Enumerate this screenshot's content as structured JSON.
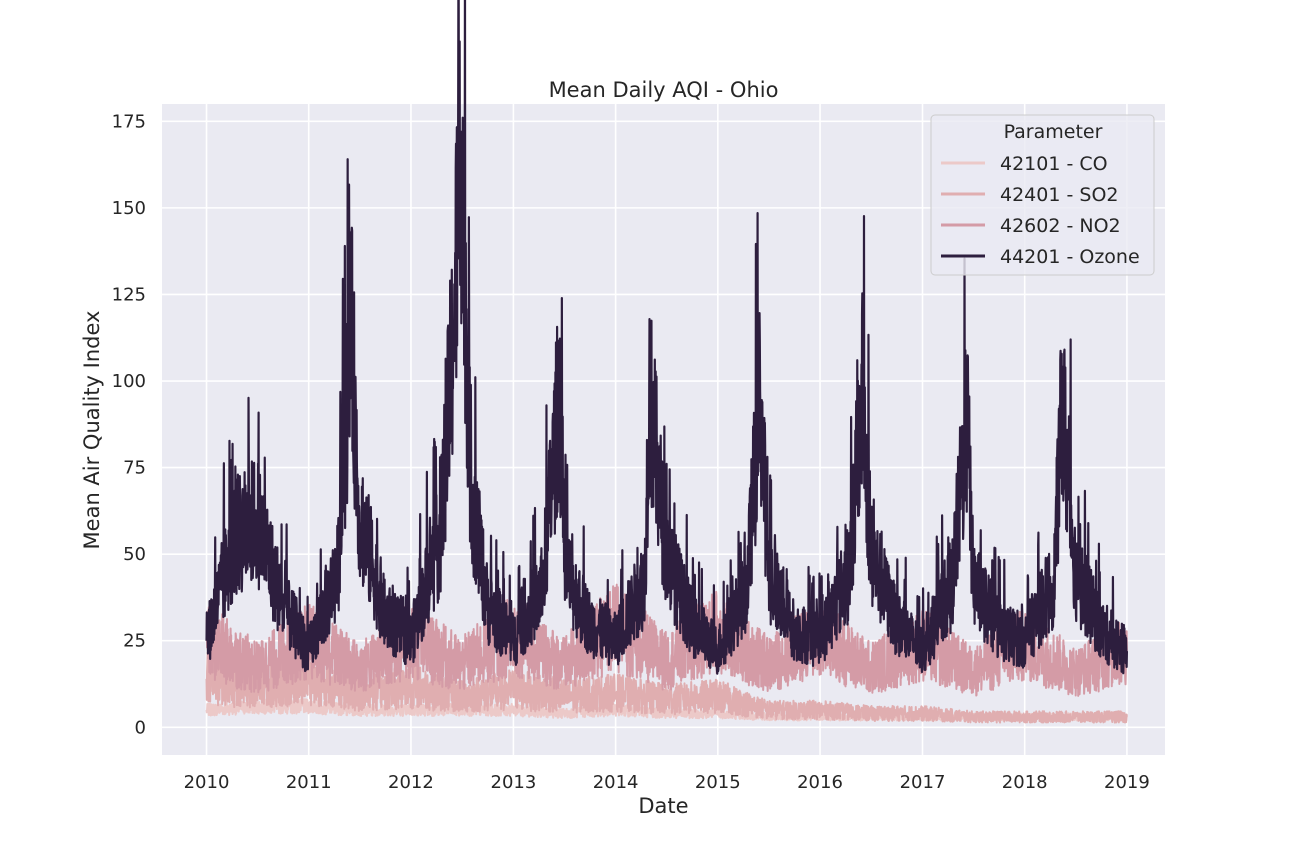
{
  "chart_data": {
    "type": "line",
    "title": "Mean Daily AQI - Ohio",
    "xlabel": "Date",
    "ylabel": "Mean Air Quality Index",
    "xlim": [
      "2009-07-26",
      "2019-05-17"
    ],
    "ylim": [
      -8,
      180
    ],
    "x_ticks": [
      "2010",
      "2011",
      "2012",
      "2013",
      "2014",
      "2015",
      "2016",
      "2017",
      "2018",
      "2019"
    ],
    "y_ticks": [
      0,
      25,
      50,
      75,
      100,
      125,
      150,
      175
    ],
    "grid": true,
    "legend": {
      "title": "Parameter",
      "position": "top-right"
    },
    "series": [
      {
        "name": "42101 - CO",
        "color": "#ecc9c8",
        "points": [
          [
            "2010-01-01",
            5
          ],
          [
            "2010-07-01",
            6
          ],
          [
            "2011-01-01",
            6
          ],
          [
            "2011-07-01",
            5
          ],
          [
            "2012-01-01",
            5
          ],
          [
            "2012-07-01",
            5
          ],
          [
            "2013-01-01",
            5
          ],
          [
            "2013-07-01",
            4
          ],
          [
            "2014-01-01",
            5
          ],
          [
            "2014-07-01",
            4
          ],
          [
            "2015-01-01",
            4
          ],
          [
            "2015-07-01",
            3
          ],
          [
            "2016-01-01",
            3
          ],
          [
            "2016-07-01",
            3
          ],
          [
            "2017-01-01",
            3
          ],
          [
            "2017-07-01",
            3
          ],
          [
            "2018-01-01",
            3
          ],
          [
            "2018-07-01",
            3
          ],
          [
            "2019-01-01",
            3
          ]
        ]
      },
      {
        "name": "42401 - SO2",
        "color": "#e0aeb0",
        "points": [
          [
            "2010-01-01",
            14
          ],
          [
            "2010-07-01",
            12
          ],
          [
            "2011-01-01",
            14
          ],
          [
            "2011-07-01",
            10
          ],
          [
            "2012-01-01",
            12
          ],
          [
            "2012-07-01",
            9
          ],
          [
            "2013-01-01",
            11
          ],
          [
            "2013-07-01",
            9
          ],
          [
            "2014-01-01",
            10
          ],
          [
            "2014-07-01",
            8
          ],
          [
            "2015-01-01",
            9
          ],
          [
            "2015-07-01",
            5
          ],
          [
            "2016-01-01",
            5
          ],
          [
            "2016-07-01",
            4
          ],
          [
            "2017-01-01",
            4
          ],
          [
            "2017-07-01",
            3
          ],
          [
            "2018-01-01",
            3
          ],
          [
            "2018-07-01",
            3
          ],
          [
            "2019-01-01",
            3
          ]
        ]
      },
      {
        "name": "42602 - NO2",
        "color": "#d49ba6",
        "points": [
          [
            "2010-01-01",
            25
          ],
          [
            "2010-07-01",
            17
          ],
          [
            "2011-01-01",
            25
          ],
          [
            "2011-07-01",
            17
          ],
          [
            "2012-01-01",
            25
          ],
          [
            "2012-07-01",
            18
          ],
          [
            "2013-01-01",
            27
          ],
          [
            "2013-07-01",
            18
          ],
          [
            "2014-01-01",
            29
          ],
          [
            "2014-07-01",
            19
          ],
          [
            "2015-01-01",
            28
          ],
          [
            "2015-07-01",
            18
          ],
          [
            "2016-01-01",
            26
          ],
          [
            "2016-07-01",
            17
          ],
          [
            "2017-01-01",
            24
          ],
          [
            "2017-07-01",
            16
          ],
          [
            "2018-01-01",
            24
          ],
          [
            "2018-07-01",
            16
          ],
          [
            "2019-01-01",
            22
          ]
        ]
      },
      {
        "name": "44201 - Ozone",
        "color": "#2d1e3e",
        "points": [
          [
            "2010-01-01",
            25
          ],
          [
            "2010-04-15",
            55
          ],
          [
            "2010-07-01",
            60
          ],
          [
            "2010-10-01",
            35
          ],
          [
            "2011-01-01",
            22
          ],
          [
            "2011-04-15",
            45
          ],
          [
            "2011-06-01",
            116
          ],
          [
            "2011-07-01",
            62
          ],
          [
            "2011-10-01",
            32
          ],
          [
            "2012-01-01",
            25
          ],
          [
            "2012-04-15",
            55
          ],
          [
            "2012-06-01",
            113
          ],
          [
            "2012-06-28",
            172
          ],
          [
            "2012-08-01",
            70
          ],
          [
            "2012-10-01",
            35
          ],
          [
            "2013-01-01",
            25
          ],
          [
            "2013-04-15",
            40
          ],
          [
            "2013-06-15",
            97
          ],
          [
            "2013-07-01",
            45
          ],
          [
            "2013-10-01",
            30
          ],
          [
            "2014-01-01",
            25
          ],
          [
            "2014-04-15",
            42
          ],
          [
            "2014-05-01",
            97
          ],
          [
            "2014-07-01",
            50
          ],
          [
            "2014-10-01",
            30
          ],
          [
            "2015-01-01",
            22
          ],
          [
            "2015-04-15",
            40
          ],
          [
            "2015-06-01",
            97
          ],
          [
            "2015-07-01",
            45
          ],
          [
            "2015-10-01",
            28
          ],
          [
            "2016-01-01",
            25
          ],
          [
            "2016-04-15",
            45
          ],
          [
            "2016-06-01",
            97
          ],
          [
            "2016-07-01",
            50
          ],
          [
            "2016-10-01",
            30
          ],
          [
            "2017-01-01",
            22
          ],
          [
            "2017-04-15",
            40
          ],
          [
            "2017-06-10",
            89
          ],
          [
            "2017-07-01",
            42
          ],
          [
            "2017-10-01",
            28
          ],
          [
            "2018-01-01",
            25
          ],
          [
            "2018-04-15",
            42
          ],
          [
            "2018-05-15",
            93
          ],
          [
            "2018-07-01",
            45
          ],
          [
            "2018-10-01",
            28
          ],
          [
            "2019-01-01",
            22
          ]
        ]
      }
    ]
  }
}
